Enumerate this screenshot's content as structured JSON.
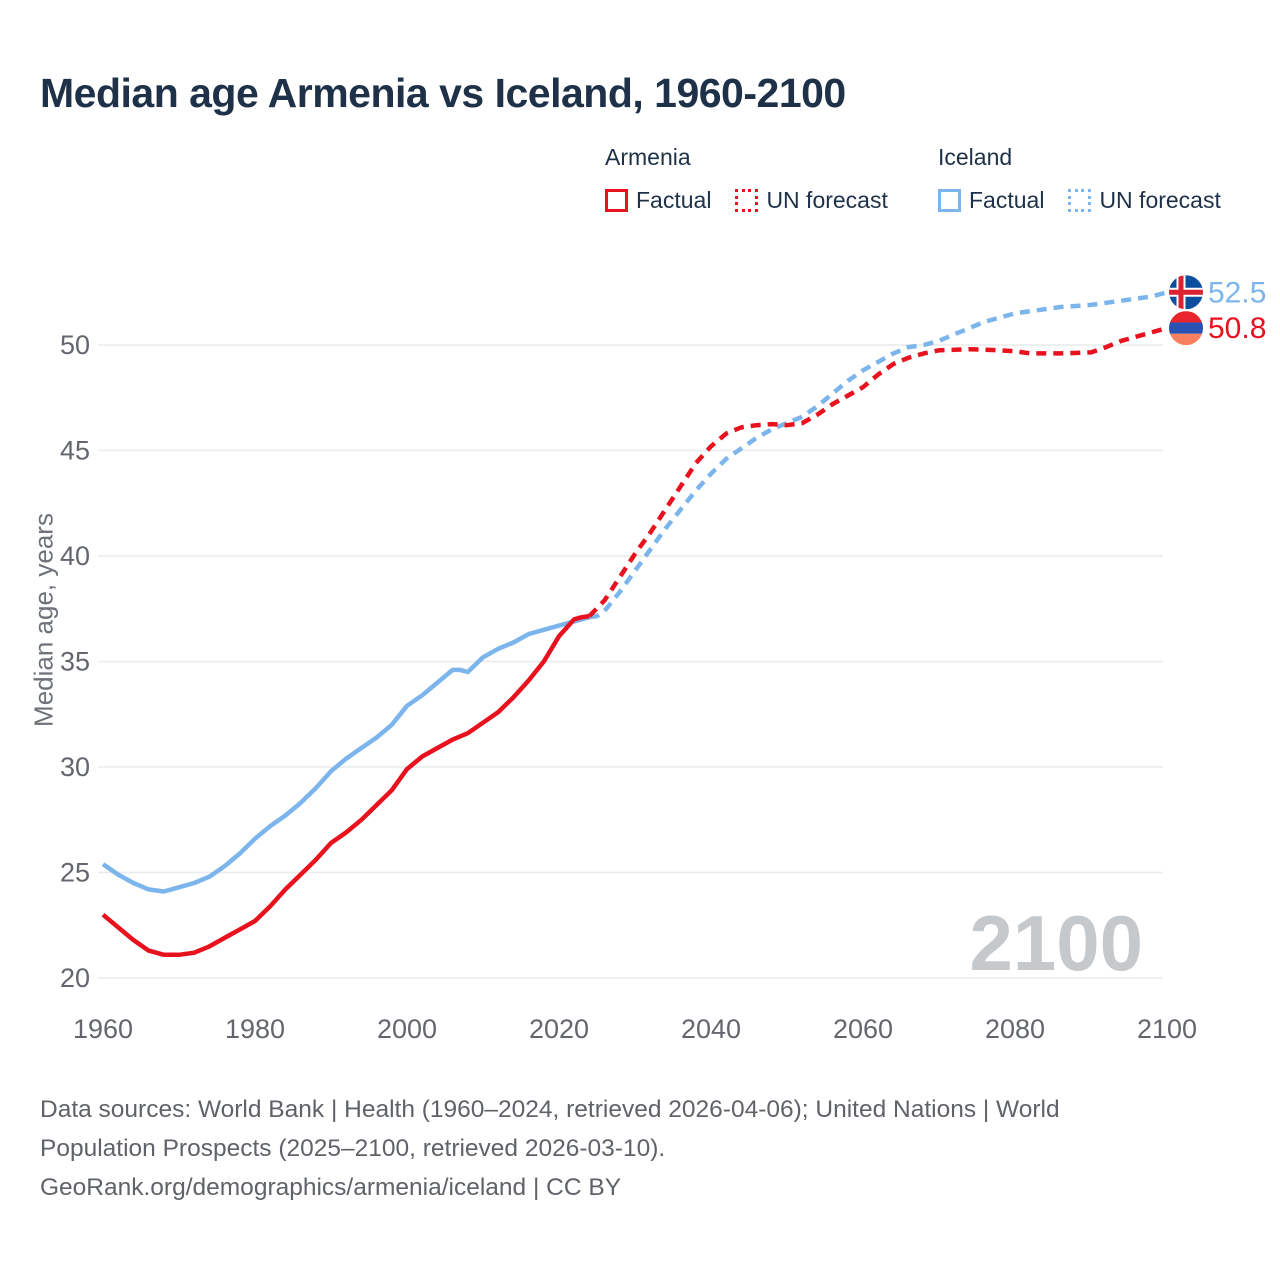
{
  "title": "Median age Armenia vs Iceland, 1960-2100",
  "watermark": "2100",
  "legend": {
    "groups": [
      {
        "name": "Armenia",
        "color": "#e8121f",
        "items": [
          {
            "label": "Factual",
            "style": "solid"
          },
          {
            "label": "UN forecast",
            "style": "dotted"
          }
        ]
      },
      {
        "name": "Iceland",
        "color": "#7cb5ec",
        "items": [
          {
            "label": "Factual",
            "style": "solid"
          },
          {
            "label": "UN forecast",
            "style": "dotted"
          }
        ]
      }
    ]
  },
  "y_axis": {
    "title": "Median age, years",
    "ticks": [
      20,
      25,
      30,
      35,
      40,
      45,
      50
    ]
  },
  "x_axis": {
    "ticks": [
      1960,
      1980,
      2000,
      2020,
      2040,
      2060,
      2080,
      2100
    ]
  },
  "footer": {
    "lines": [
      "Data sources: World Bank | Health (1960–2024, retrieved 2026-04-06); United Nations | World",
      "Population Prospects (2025–2100, retrieved 2026-03-10).",
      "GeoRank.org/demographics/armenia/iceland | CC BY"
    ]
  },
  "chart_data": {
    "type": "line",
    "title": "Median age Armenia vs Iceland, 1960-2100",
    "xlabel": "",
    "ylabel": "Median age, years",
    "xlim": [
      1960,
      2100
    ],
    "ylim": [
      20,
      53.5
    ],
    "grid": "horizontal-only",
    "legend_position": "top",
    "yticks": [
      20,
      25,
      30,
      35,
      40,
      45,
      50
    ],
    "xticks": [
      1960,
      1980,
      2000,
      2020,
      2040,
      2060,
      2080,
      2100
    ],
    "series": [
      {
        "name": "Iceland Factual",
        "color": "#7cb5ec",
        "dash": "solid",
        "points": [
          [
            1960,
            25.4
          ],
          [
            1962,
            24.9
          ],
          [
            1964,
            24.5
          ],
          [
            1966,
            24.2
          ],
          [
            1968,
            24.1
          ],
          [
            1970,
            24.3
          ],
          [
            1972,
            24.5
          ],
          [
            1974,
            24.8
          ],
          [
            1976,
            25.3
          ],
          [
            1978,
            25.9
          ],
          [
            1980,
            26.6
          ],
          [
            1982,
            27.2
          ],
          [
            1984,
            27.7
          ],
          [
            1986,
            28.3
          ],
          [
            1988,
            29.0
          ],
          [
            1990,
            29.8
          ],
          [
            1992,
            30.4
          ],
          [
            1994,
            30.9
          ],
          [
            1996,
            31.4
          ],
          [
            1998,
            32.0
          ],
          [
            2000,
            32.9
          ],
          [
            2002,
            33.4
          ],
          [
            2004,
            34.0
          ],
          [
            2006,
            34.6
          ],
          [
            2007,
            34.6
          ],
          [
            2008,
            34.5
          ],
          [
            2010,
            35.2
          ],
          [
            2012,
            35.6
          ],
          [
            2014,
            35.9
          ],
          [
            2016,
            36.3
          ],
          [
            2018,
            36.5
          ],
          [
            2020,
            36.7
          ],
          [
            2022,
            36.9
          ],
          [
            2024,
            37.1
          ]
        ]
      },
      {
        "name": "Iceland UN forecast",
        "color": "#7cb5ec",
        "dash": "dashed",
        "points": [
          [
            2024,
            37.1
          ],
          [
            2025,
            37.15
          ],
          [
            2026,
            37.4
          ],
          [
            2028,
            38.3
          ],
          [
            2030,
            39.3
          ],
          [
            2032,
            40.3
          ],
          [
            2034,
            41.3
          ],
          [
            2036,
            42.2
          ],
          [
            2038,
            43.1
          ],
          [
            2040,
            43.9
          ],
          [
            2042,
            44.6
          ],
          [
            2044,
            45.1
          ],
          [
            2046,
            45.6
          ],
          [
            2048,
            46.0
          ],
          [
            2050,
            46.3
          ],
          [
            2052,
            46.6
          ],
          [
            2054,
            47.1
          ],
          [
            2056,
            47.7
          ],
          [
            2058,
            48.3
          ],
          [
            2060,
            48.8
          ],
          [
            2062,
            49.2
          ],
          [
            2064,
            49.6
          ],
          [
            2066,
            49.9
          ],
          [
            2068,
            50.0
          ],
          [
            2070,
            50.2
          ],
          [
            2072,
            50.5
          ],
          [
            2074,
            50.8
          ],
          [
            2076,
            51.1
          ],
          [
            2078,
            51.3
          ],
          [
            2080,
            51.5
          ],
          [
            2082,
            51.6
          ],
          [
            2084,
            51.7
          ],
          [
            2086,
            51.8
          ],
          [
            2088,
            51.85
          ],
          [
            2090,
            51.9
          ],
          [
            2092,
            52.0
          ],
          [
            2094,
            52.1
          ],
          [
            2096,
            52.2
          ],
          [
            2098,
            52.3
          ],
          [
            2100,
            52.5
          ]
        ]
      },
      {
        "name": "Armenia Factual",
        "color": "#e8121f",
        "dash": "solid",
        "points": [
          [
            1960,
            23.0
          ],
          [
            1962,
            22.4
          ],
          [
            1964,
            21.8
          ],
          [
            1966,
            21.3
          ],
          [
            1968,
            21.1
          ],
          [
            1970,
            21.1
          ],
          [
            1972,
            21.2
          ],
          [
            1974,
            21.5
          ],
          [
            1976,
            21.9
          ],
          [
            1978,
            22.3
          ],
          [
            1980,
            22.7
          ],
          [
            1982,
            23.4
          ],
          [
            1984,
            24.2
          ],
          [
            1986,
            24.9
          ],
          [
            1988,
            25.6
          ],
          [
            1990,
            26.4
          ],
          [
            1992,
            26.9
          ],
          [
            1994,
            27.5
          ],
          [
            1996,
            28.2
          ],
          [
            1998,
            28.9
          ],
          [
            2000,
            29.9
          ],
          [
            2002,
            30.5
          ],
          [
            2004,
            30.9
          ],
          [
            2006,
            31.3
          ],
          [
            2008,
            31.6
          ],
          [
            2010,
            32.1
          ],
          [
            2012,
            32.6
          ],
          [
            2014,
            33.3
          ],
          [
            2016,
            34.1
          ],
          [
            2018,
            35.0
          ],
          [
            2020,
            36.2
          ],
          [
            2022,
            37.0
          ],
          [
            2023,
            37.1
          ],
          [
            2024,
            37.15
          ]
        ]
      },
      {
        "name": "Armenia UN forecast",
        "color": "#e8121f",
        "dash": "dashed",
        "points": [
          [
            2024,
            37.15
          ],
          [
            2026,
            37.9
          ],
          [
            2028,
            39.0
          ],
          [
            2030,
            40.1
          ],
          [
            2032,
            41.1
          ],
          [
            2034,
            42.2
          ],
          [
            2036,
            43.3
          ],
          [
            2038,
            44.4
          ],
          [
            2040,
            45.2
          ],
          [
            2042,
            45.8
          ],
          [
            2044,
            46.1
          ],
          [
            2046,
            46.2
          ],
          [
            2048,
            46.25
          ],
          [
            2050,
            46.2
          ],
          [
            2052,
            46.3
          ],
          [
            2054,
            46.7
          ],
          [
            2056,
            47.2
          ],
          [
            2058,
            47.6
          ],
          [
            2060,
            48.0
          ],
          [
            2062,
            48.6
          ],
          [
            2064,
            49.1
          ],
          [
            2066,
            49.4
          ],
          [
            2068,
            49.6
          ],
          [
            2070,
            49.75
          ],
          [
            2074,
            49.8
          ],
          [
            2078,
            49.75
          ],
          [
            2080,
            49.7
          ],
          [
            2082,
            49.6
          ],
          [
            2086,
            49.6
          ],
          [
            2090,
            49.65
          ],
          [
            2092,
            49.9
          ],
          [
            2094,
            50.2
          ],
          [
            2096,
            50.4
          ],
          [
            2098,
            50.6
          ],
          [
            2100,
            50.8
          ]
        ]
      }
    ],
    "end_markers": [
      {
        "name": "Iceland",
        "label": "52.5",
        "value": 52.5,
        "year": 2100,
        "flag": "iceland",
        "color": "#7cb5ec"
      },
      {
        "name": "Armenia",
        "label": "50.8",
        "value": 50.8,
        "year": 2100,
        "flag": "armenia",
        "color": "#e8121f"
      }
    ],
    "flag_colors": {
      "iceland": {
        "field": "#0b4f9e",
        "cross_outer": "#ffffff",
        "cross_inner": "#dc2230"
      },
      "armenia": {
        "top": "#e8252d",
        "middle": "#2a52b2",
        "bottom": "#f9805e"
      }
    }
  }
}
